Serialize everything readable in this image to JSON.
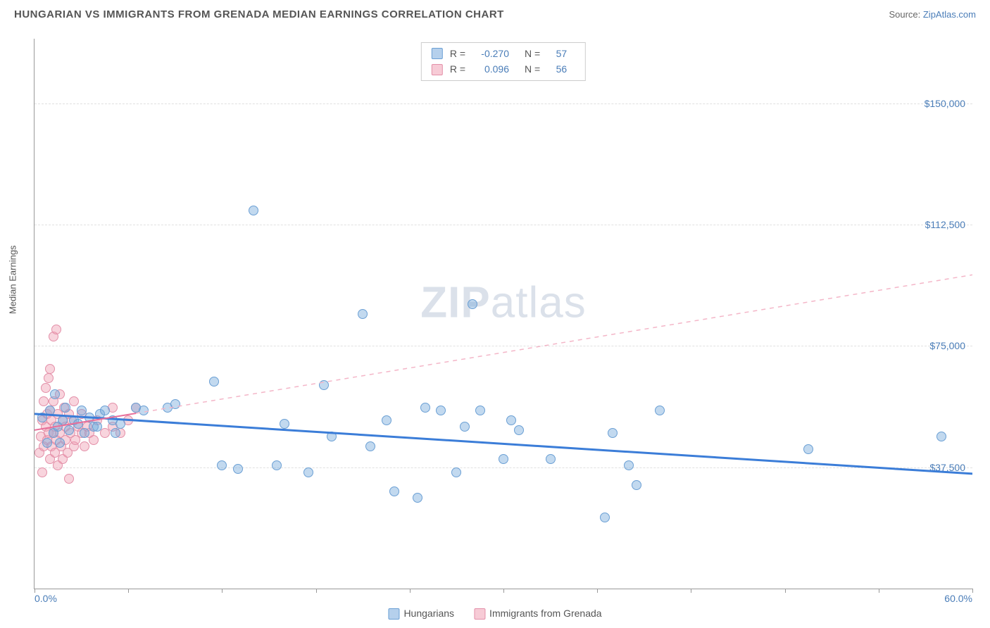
{
  "header": {
    "title": "HUNGARIAN VS IMMIGRANTS FROM GRENADA MEDIAN EARNINGS CORRELATION CHART",
    "source_prefix": "Source: ",
    "source_name": "ZipAtlas.com"
  },
  "watermark": {
    "zip": "ZIP",
    "atlas": "atlas"
  },
  "chart": {
    "type": "scatter",
    "background_color": "#ffffff",
    "grid_color": "#e0e0e0",
    "axis_color": "#999999",
    "ylabel": "Median Earnings",
    "xlim": [
      0,
      60
    ],
    "ylim": [
      0,
      170000
    ],
    "yticks": [
      {
        "v": 37500,
        "label": "$37,500"
      },
      {
        "v": 75000,
        "label": "$75,000"
      },
      {
        "v": 112500,
        "label": "$112,500"
      },
      {
        "v": 150000,
        "label": "$150,000"
      }
    ],
    "xtick_positions": [
      0,
      6,
      12,
      18,
      24,
      30,
      36,
      42,
      48,
      54,
      60
    ],
    "xtick_labels": {
      "min": "0.0%",
      "max": "60.0%"
    },
    "stats": [
      {
        "series": "blue",
        "R_label": "R =",
        "R": "-0.270",
        "N_label": "N =",
        "N": "57"
      },
      {
        "series": "pink",
        "R_label": "R =",
        "R": "0.096",
        "N_label": "N =",
        "N": "56"
      }
    ],
    "legend": [
      {
        "series": "blue",
        "label": "Hungarians"
      },
      {
        "series": "pink",
        "label": "Immigrants from Grenada"
      }
    ],
    "series_blue": {
      "color_fill": "rgba(120,170,220,0.45)",
      "color_stroke": "#6a9fd4",
      "trend_color": "#3b7dd8",
      "trend_width": 3,
      "trend_dash": "none",
      "trend_y_at_xmin": 54000,
      "trend_y_at_xmax": 35500,
      "points": [
        [
          0.5,
          53000
        ],
        [
          0.8,
          45000
        ],
        [
          1.0,
          55000
        ],
        [
          1.2,
          48000
        ],
        [
          1.3,
          60000
        ],
        [
          1.5,
          50000
        ],
        [
          1.6,
          45000
        ],
        [
          1.8,
          52000
        ],
        [
          2.0,
          56000
        ],
        [
          2.2,
          49000
        ],
        [
          2.5,
          52000
        ],
        [
          2.8,
          51000
        ],
        [
          3.0,
          55000
        ],
        [
          3.2,
          48000
        ],
        [
          3.5,
          53000
        ],
        [
          3.8,
          50000
        ],
        [
          4.0,
          50000
        ],
        [
          4.2,
          54000
        ],
        [
          4.5,
          55000
        ],
        [
          5.0,
          52000
        ],
        [
          5.2,
          48000
        ],
        [
          5.5,
          51000
        ],
        [
          6.5,
          56000
        ],
        [
          7.0,
          55000
        ],
        [
          8.5,
          56000
        ],
        [
          9.0,
          57000
        ],
        [
          11.5,
          64000
        ],
        [
          12.0,
          38000
        ],
        [
          13.0,
          37000
        ],
        [
          14.0,
          117000
        ],
        [
          15.5,
          38000
        ],
        [
          16.0,
          51000
        ],
        [
          17.5,
          36000
        ],
        [
          18.5,
          63000
        ],
        [
          19.0,
          47000
        ],
        [
          21.0,
          85000
        ],
        [
          21.5,
          44000
        ],
        [
          22.5,
          52000
        ],
        [
          23.0,
          30000
        ],
        [
          24.5,
          28000
        ],
        [
          25.0,
          56000
        ],
        [
          26.0,
          55000
        ],
        [
          27.0,
          36000
        ],
        [
          27.5,
          50000
        ],
        [
          28.0,
          88000
        ],
        [
          28.5,
          55000
        ],
        [
          30.0,
          40000
        ],
        [
          30.5,
          52000
        ],
        [
          31.0,
          49000
        ],
        [
          33.0,
          40000
        ],
        [
          36.5,
          22000
        ],
        [
          37.0,
          48000
        ],
        [
          38.0,
          38000
        ],
        [
          38.5,
          32000
        ],
        [
          40.0,
          55000
        ],
        [
          49.5,
          43000
        ],
        [
          58.0,
          47000
        ]
      ]
    },
    "series_pink": {
      "color_fill": "rgba(240,160,180,0.45)",
      "color_stroke": "#e38fa8",
      "trend_solid_color": "#e86f9a",
      "trend_solid_width": 2,
      "trend_dash_color": "#f4b6c8",
      "trend_dash_width": 1.5,
      "trend_y_at_xmin": 49000,
      "trend_y_at_xmax": 97000,
      "trend_solid_xmax": 6.5,
      "points": [
        [
          0.3,
          42000
        ],
        [
          0.4,
          47000
        ],
        [
          0.5,
          52000
        ],
        [
          0.5,
          36000
        ],
        [
          0.6,
          58000
        ],
        [
          0.6,
          44000
        ],
        [
          0.7,
          50000
        ],
        [
          0.7,
          62000
        ],
        [
          0.8,
          46000
        ],
        [
          0.8,
          54000
        ],
        [
          0.9,
          48000
        ],
        [
          0.9,
          65000
        ],
        [
          1.0,
          40000
        ],
        [
          1.0,
          55000
        ],
        [
          1.0,
          68000
        ],
        [
          1.1,
          44000
        ],
        [
          1.1,
          52000
        ],
        [
          1.2,
          48000
        ],
        [
          1.2,
          58000
        ],
        [
          1.2,
          78000
        ],
        [
          1.3,
          42000
        ],
        [
          1.3,
          50000
        ],
        [
          1.4,
          46000
        ],
        [
          1.4,
          80000
        ],
        [
          1.5,
          38000
        ],
        [
          1.5,
          54000
        ],
        [
          1.6,
          48000
        ],
        [
          1.6,
          60000
        ],
        [
          1.7,
          44000
        ],
        [
          1.8,
          52000
        ],
        [
          1.8,
          40000
        ],
        [
          1.9,
          56000
        ],
        [
          2.0,
          46000
        ],
        [
          2.0,
          50000
        ],
        [
          2.1,
          42000
        ],
        [
          2.2,
          54000
        ],
        [
          2.2,
          34000
        ],
        [
          2.3,
          48000
        ],
        [
          2.4,
          52000
        ],
        [
          2.5,
          44000
        ],
        [
          2.5,
          58000
        ],
        [
          2.6,
          46000
        ],
        [
          2.8,
          50000
        ],
        [
          3.0,
          48000
        ],
        [
          3.0,
          54000
        ],
        [
          3.2,
          44000
        ],
        [
          3.4,
          50000
        ],
        [
          3.5,
          48000
        ],
        [
          3.8,
          46000
        ],
        [
          4.0,
          52000
        ],
        [
          4.5,
          48000
        ],
        [
          5.0,
          50000
        ],
        [
          5.0,
          56000
        ],
        [
          5.5,
          48000
        ],
        [
          6.0,
          52000
        ],
        [
          6.5,
          56000
        ]
      ]
    }
  }
}
